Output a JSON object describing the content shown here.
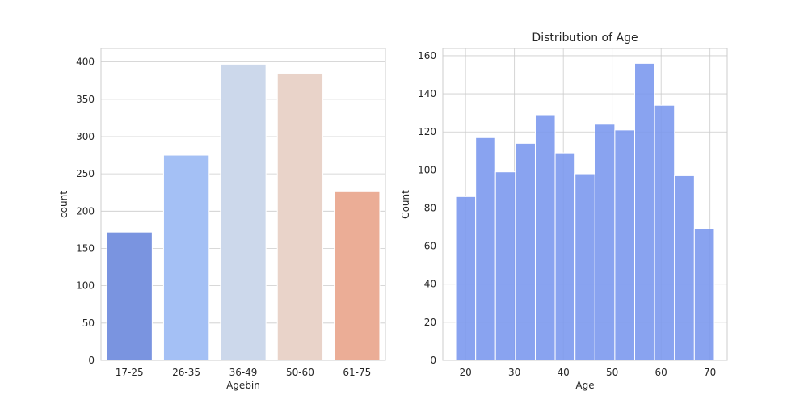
{
  "chart_data": [
    {
      "type": "bar",
      "title": "",
      "xlabel": "Agebin",
      "ylabel": "count",
      "categories": [
        "17-25",
        "26-35",
        "36-49",
        "50-60",
        "61-75"
      ],
      "values": [
        172,
        275,
        397,
        385,
        226
      ],
      "colors": [
        "#7a94e0",
        "#a4c0f5",
        "#ccd8eb",
        "#e9d3c9",
        "#ebad96"
      ],
      "ylim": [
        0,
        418
      ],
      "yticks": [
        0,
        50,
        100,
        150,
        200,
        250,
        300,
        350,
        400
      ],
      "grid": "y"
    },
    {
      "type": "bar",
      "title": "Distribution of Age",
      "xlabel": "Age",
      "ylabel": "Count",
      "bin_edges": [
        18,
        22.07,
        26.13,
        30.2,
        34.27,
        38.33,
        42.4,
        46.47,
        50.53,
        54.6,
        58.67,
        62.73,
        66.8,
        70.87
      ],
      "values": [
        86,
        117,
        99,
        114,
        129,
        109,
        98,
        124,
        121,
        156,
        134,
        97,
        69
      ],
      "color": "#7996ee",
      "xlim": [
        15.35,
        73.52
      ],
      "ylim": [
        0,
        163.8
      ],
      "xticks": [
        20,
        30,
        40,
        50,
        60,
        70
      ],
      "yticks": [
        0,
        20,
        40,
        60,
        80,
        100,
        120,
        140,
        160
      ],
      "grid": "both"
    }
  ]
}
